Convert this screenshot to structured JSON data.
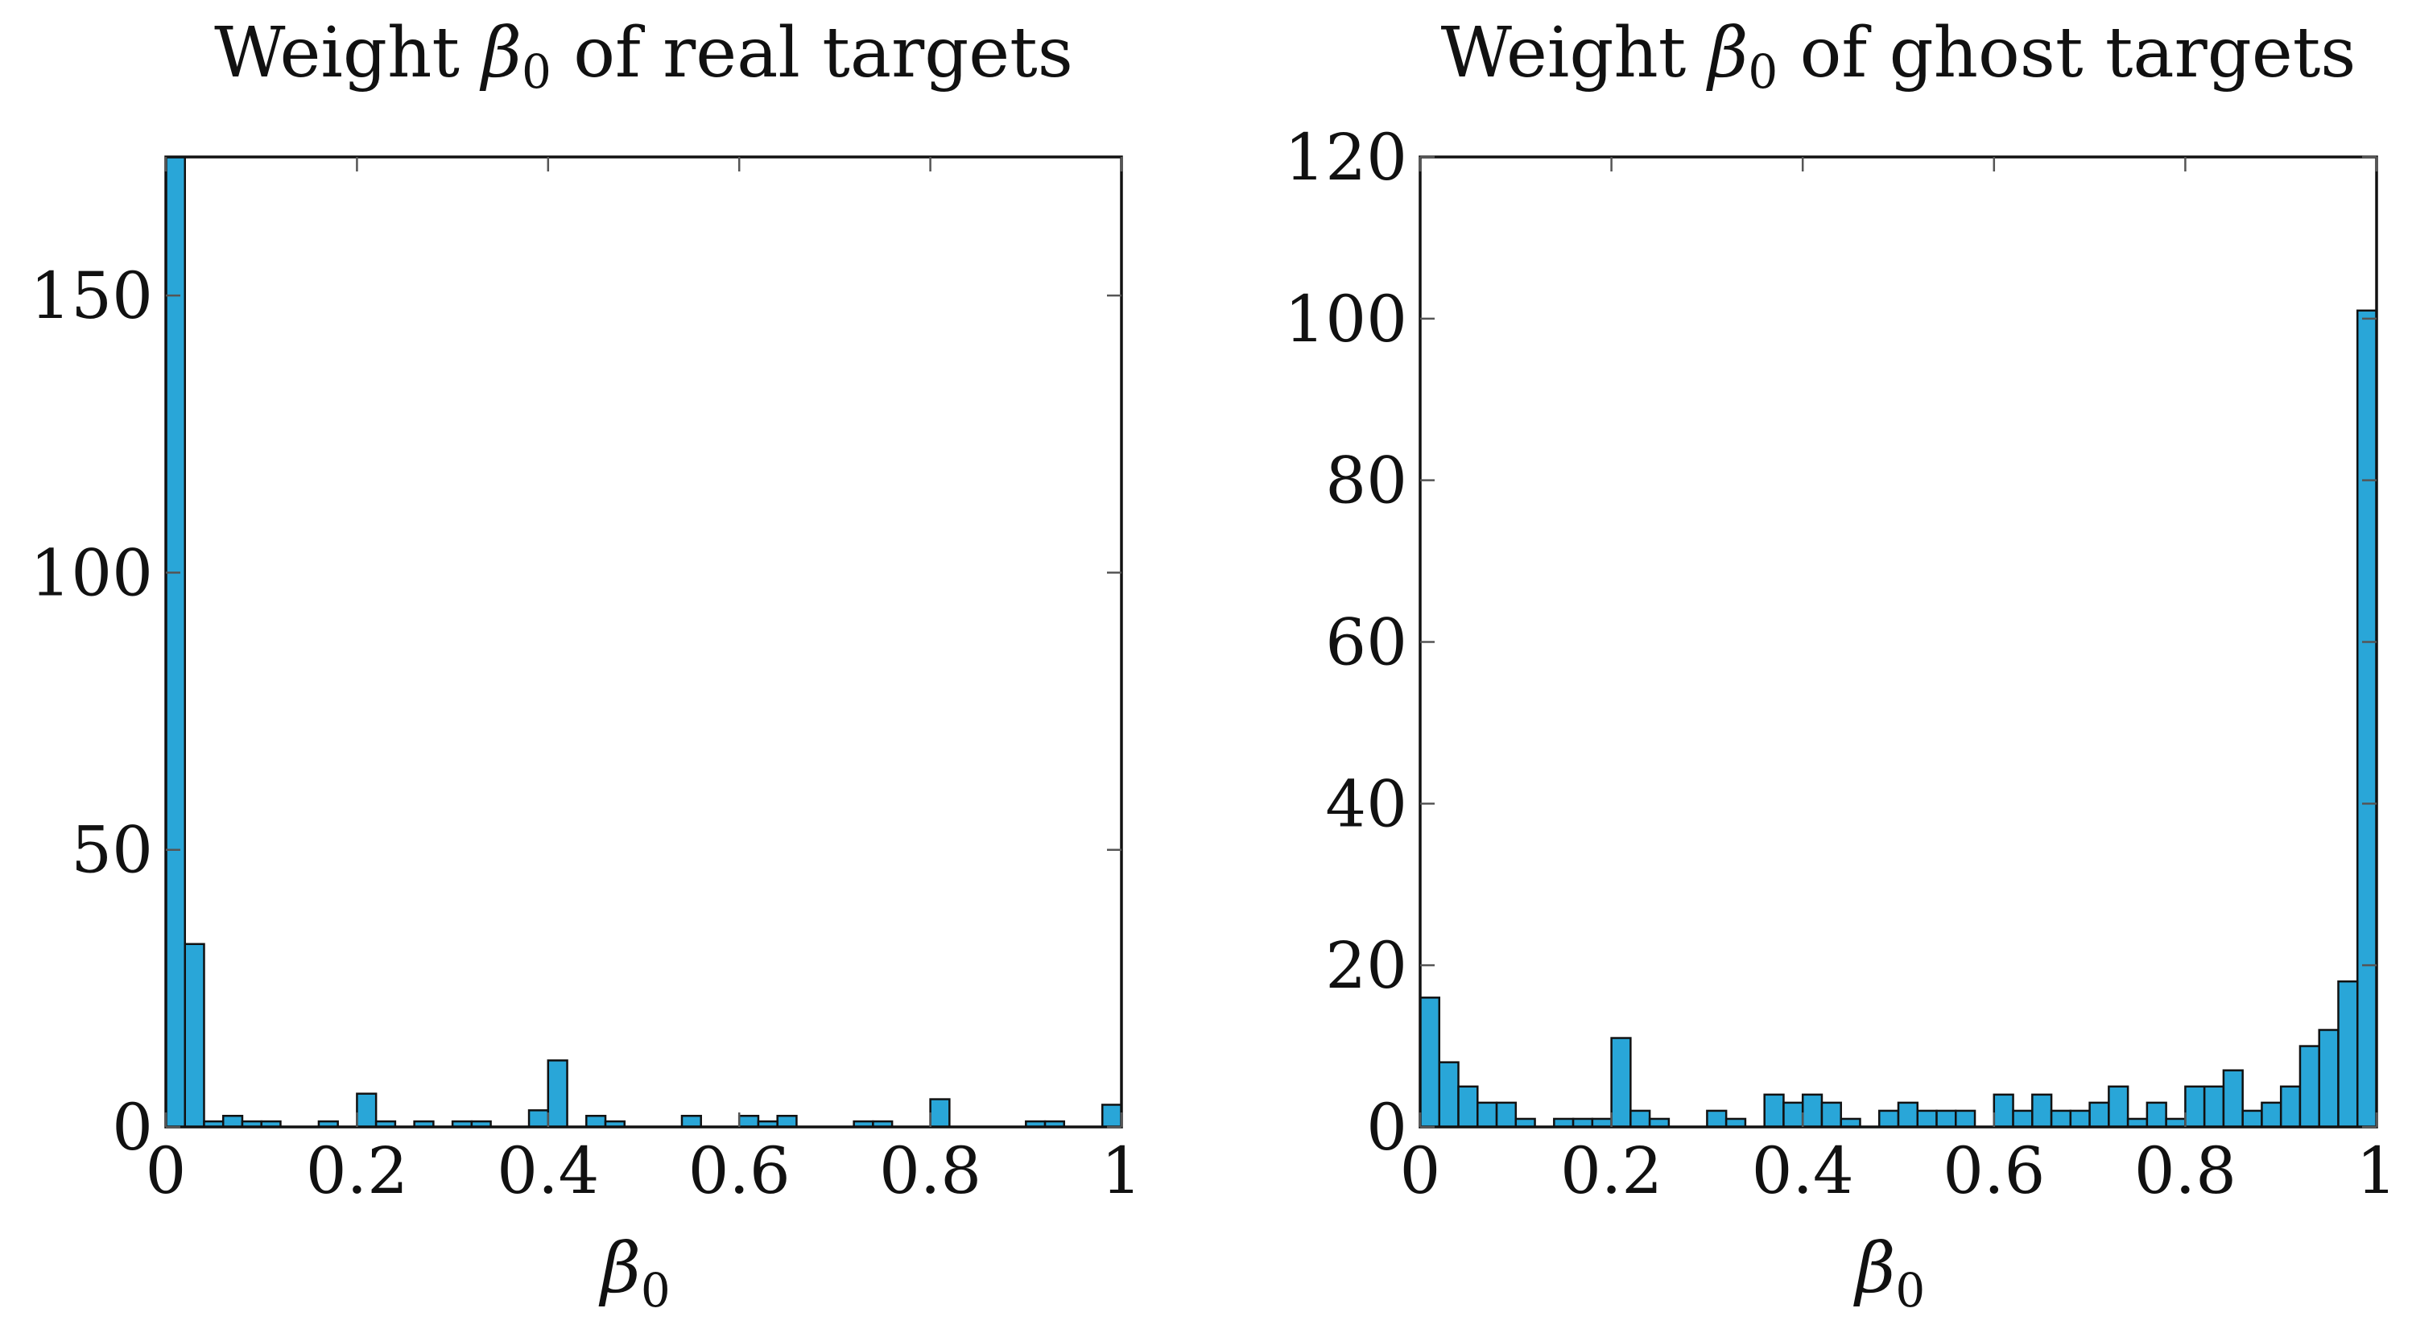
{
  "chart_data": [
    {
      "type": "bar",
      "title_prefix": "Weight ",
      "title_symbol": "β",
      "title_subscript": "0",
      "title_suffix": " of real targets",
      "xlabel_symbol": "β",
      "xlabel_subscript": "0",
      "ylabel": "",
      "xlim": [
        0,
        1
      ],
      "ylim": [
        0,
        175
      ],
      "x_ticks": [
        "0",
        "0.2",
        "0.4",
        "0.6",
        "0.8",
        "1"
      ],
      "x_tick_values": [
        0,
        0.2,
        0.4,
        0.6,
        0.8,
        1
      ],
      "y_ticks": [
        "0",
        "50",
        "100",
        "150"
      ],
      "y_tick_values": [
        0,
        50,
        100,
        150
      ],
      "bin_width": 0.02,
      "bin_starts": [
        0,
        0.02,
        0.04,
        0.06,
        0.08,
        0.1,
        0.12,
        0.14,
        0.16,
        0.18,
        0.2,
        0.22,
        0.24,
        0.26,
        0.28,
        0.3,
        0.32,
        0.34,
        0.36,
        0.38,
        0.4,
        0.42,
        0.44,
        0.46,
        0.48,
        0.5,
        0.52,
        0.54,
        0.56,
        0.58,
        0.6,
        0.62,
        0.64,
        0.66,
        0.68,
        0.7,
        0.72,
        0.74,
        0.76,
        0.78,
        0.8,
        0.82,
        0.84,
        0.86,
        0.88,
        0.9,
        0.92,
        0.94,
        0.96,
        0.98
      ],
      "counts": [
        175,
        33,
        1,
        2,
        1,
        1,
        0,
        0,
        1,
        0,
        6,
        1,
        0,
        1,
        0,
        1,
        1,
        0,
        0,
        3,
        12,
        0,
        2,
        1,
        0,
        0,
        0,
        2,
        0,
        0,
        2,
        1,
        2,
        0,
        0,
        0,
        1,
        1,
        0,
        0,
        5,
        0,
        0,
        0,
        0,
        1,
        1,
        0,
        0,
        4
      ],
      "bar_color": "#29a6d8",
      "edge_color": "#111111"
    },
    {
      "type": "bar",
      "title_prefix": "Weight ",
      "title_symbol": "β",
      "title_subscript": "0",
      "title_suffix": " of ghost targets",
      "xlabel_symbol": "β",
      "xlabel_subscript": "0",
      "ylabel": "",
      "xlim": [
        0,
        1
      ],
      "ylim": [
        0,
        120
      ],
      "x_ticks": [
        "0",
        "0.2",
        "0.4",
        "0.6",
        "0.8",
        "1"
      ],
      "x_tick_values": [
        0,
        0.2,
        0.4,
        0.6,
        0.8,
        1
      ],
      "y_ticks": [
        "0",
        "20",
        "40",
        "60",
        "80",
        "100",
        "120"
      ],
      "y_tick_values": [
        0,
        20,
        40,
        60,
        80,
        100,
        120
      ],
      "bin_width": 0.02,
      "bin_starts": [
        0,
        0.02,
        0.04,
        0.06,
        0.08,
        0.1,
        0.12,
        0.14,
        0.16,
        0.18,
        0.2,
        0.22,
        0.24,
        0.26,
        0.28,
        0.3,
        0.32,
        0.34,
        0.36,
        0.38,
        0.4,
        0.42,
        0.44,
        0.46,
        0.48,
        0.5,
        0.52,
        0.54,
        0.56,
        0.58,
        0.6,
        0.62,
        0.64,
        0.66,
        0.68,
        0.7,
        0.72,
        0.74,
        0.76,
        0.78,
        0.8,
        0.82,
        0.84,
        0.86,
        0.88,
        0.9,
        0.92,
        0.94,
        0.96,
        0.98
      ],
      "counts": [
        16,
        8,
        5,
        3,
        3,
        1,
        0,
        1,
        1,
        1,
        11,
        2,
        1,
        0,
        0,
        2,
        1,
        0,
        4,
        3,
        4,
        3,
        1,
        0,
        2,
        3,
        2,
        2,
        2,
        0,
        4,
        2,
        4,
        2,
        2,
        3,
        5,
        1,
        3,
        1,
        5,
        5,
        7,
        2,
        3,
        5,
        10,
        12,
        18,
        101
      ],
      "bar_color": "#29a6d8",
      "edge_color": "#111111"
    }
  ]
}
